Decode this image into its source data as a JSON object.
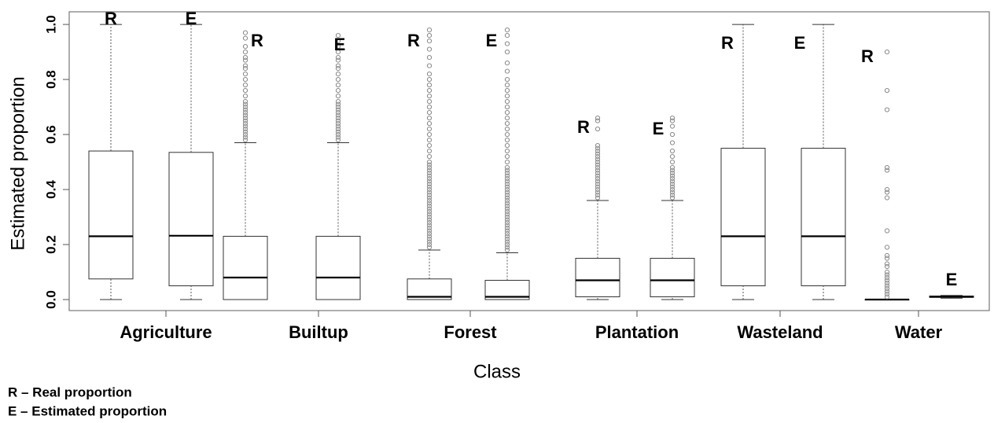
{
  "chart_data": {
    "type": "box",
    "xlabel": "Class",
    "ylabel": "Estimated proportion",
    "categories": [
      "Agriculture",
      "Builtup",
      "Forest",
      "Plantation",
      "Wasteland",
      "Water"
    ],
    "ylim": [
      -0.04,
      1.046
    ],
    "yticks": [
      {
        "value": 0,
        "label": "0.0"
      },
      0.2,
      0.4,
      0.6,
      0.8,
      {
        "value": 1,
        "label": "1.0"
      }
    ],
    "color": "#000000",
    "outlier_color": "#888888",
    "series": [
      {
        "name": "R",
        "boxes": [
          {
            "min": 0,
            "q1": 0.075,
            "median": 0.23,
            "q3": 0.54,
            "max": 1.0,
            "outliers": []
          },
          {
            "min": 0,
            "q1": 0,
            "median": 0.08,
            "q3": 0.23,
            "max": 0.57,
            "outliers": [
              0.58,
              0.59,
              0.6,
              0.61,
              0.62,
              0.63,
              0.64,
              0.65,
              0.66,
              0.67,
              0.68,
              0.69,
              0.7,
              0.71,
              0.72,
              0.74,
              0.76,
              0.78,
              0.8,
              0.82,
              0.84,
              0.85,
              0.87,
              0.88,
              0.9,
              0.92,
              0.95,
              0.97
            ]
          },
          {
            "min": 0,
            "q1": 0,
            "median": 0.01,
            "q3": 0.075,
            "max": 0.18,
            "outliers": [
              0.19,
              0.2,
              0.21,
              0.22,
              0.23,
              0.24,
              0.25,
              0.26,
              0.27,
              0.28,
              0.29,
              0.3,
              0.31,
              0.32,
              0.33,
              0.34,
              0.35,
              0.36,
              0.37,
              0.38,
              0.39,
              0.4,
              0.41,
              0.42,
              0.43,
              0.44,
              0.45,
              0.46,
              0.47,
              0.48,
              0.49,
              0.5,
              0.52,
              0.54,
              0.56,
              0.58,
              0.6,
              0.62,
              0.64,
              0.66,
              0.68,
              0.7,
              0.72,
              0.74,
              0.76,
              0.78,
              0.8,
              0.82,
              0.85,
              0.88,
              0.91,
              0.94,
              0.96,
              0.98
            ]
          },
          {
            "min": 0,
            "q1": 0.01,
            "median": 0.07,
            "q3": 0.15,
            "max": 0.36,
            "outliers": [
              0.37,
              0.38,
              0.39,
              0.4,
              0.41,
              0.42,
              0.43,
              0.44,
              0.45,
              0.46,
              0.47,
              0.48,
              0.49,
              0.5,
              0.51,
              0.52,
              0.53,
              0.54,
              0.55,
              0.56,
              0.62,
              0.65,
              0.66
            ]
          },
          {
            "min": 0,
            "q1": 0.05,
            "median": 0.23,
            "q3": 0.55,
            "max": 1.0,
            "outliers": []
          },
          {
            "min": 0,
            "q1": 0,
            "median": 0,
            "q3": 0,
            "max": 0,
            "outliers": [
              0.01,
              0.02,
              0.03,
              0.04,
              0.05,
              0.06,
              0.07,
              0.08,
              0.09,
              0.1,
              0.12,
              0.13,
              0.15,
              0.16,
              0.19,
              0.25,
              0.37,
              0.39,
              0.4,
              0.47,
              0.48,
              0.69,
              0.76,
              0.9
            ]
          }
        ]
      },
      {
        "name": "E",
        "boxes": [
          {
            "min": 0,
            "q1": 0.05,
            "median": 0.232,
            "q3": 0.535,
            "max": 1.0,
            "outliers": []
          },
          {
            "min": 0,
            "q1": 0,
            "median": 0.08,
            "q3": 0.23,
            "max": 0.57,
            "outliers": [
              0.58,
              0.59,
              0.6,
              0.61,
              0.62,
              0.63,
              0.64,
              0.65,
              0.66,
              0.67,
              0.68,
              0.69,
              0.7,
              0.71,
              0.72,
              0.74,
              0.76,
              0.78,
              0.8,
              0.82,
              0.84,
              0.85,
              0.87,
              0.88,
              0.9,
              0.92,
              0.94,
              0.96
            ]
          },
          {
            "min": 0,
            "q1": 0,
            "median": 0.01,
            "q3": 0.07,
            "max": 0.17,
            "outliers": [
              0.18,
              0.19,
              0.2,
              0.21,
              0.22,
              0.23,
              0.24,
              0.25,
              0.26,
              0.27,
              0.28,
              0.29,
              0.3,
              0.31,
              0.32,
              0.33,
              0.34,
              0.35,
              0.36,
              0.37,
              0.38,
              0.39,
              0.4,
              0.41,
              0.42,
              0.43,
              0.44,
              0.45,
              0.46,
              0.47,
              0.48,
              0.5,
              0.52,
              0.54,
              0.56,
              0.58,
              0.6,
              0.62,
              0.64,
              0.66,
              0.68,
              0.7,
              0.72,
              0.74,
              0.76,
              0.78,
              0.8,
              0.83,
              0.86,
              0.9,
              0.93,
              0.96,
              0.98
            ]
          },
          {
            "min": 0,
            "q1": 0.01,
            "median": 0.07,
            "q3": 0.15,
            "max": 0.36,
            "outliers": [
              0.37,
              0.38,
              0.39,
              0.4,
              0.41,
              0.42,
              0.43,
              0.44,
              0.45,
              0.46,
              0.47,
              0.48,
              0.5,
              0.52,
              0.54,
              0.57,
              0.6,
              0.63,
              0.65,
              0.66
            ]
          },
          {
            "min": 0,
            "q1": 0.05,
            "median": 0.23,
            "q3": 0.55,
            "max": 1.0,
            "outliers": []
          },
          {
            "min": 0.005,
            "q1": 0.008,
            "median": 0.01,
            "q3": 0.013,
            "max": 0.015,
            "outliers": []
          }
        ]
      }
    ],
    "legend": [
      "R – Real proportion",
      "E – Estimated proportion"
    ]
  }
}
